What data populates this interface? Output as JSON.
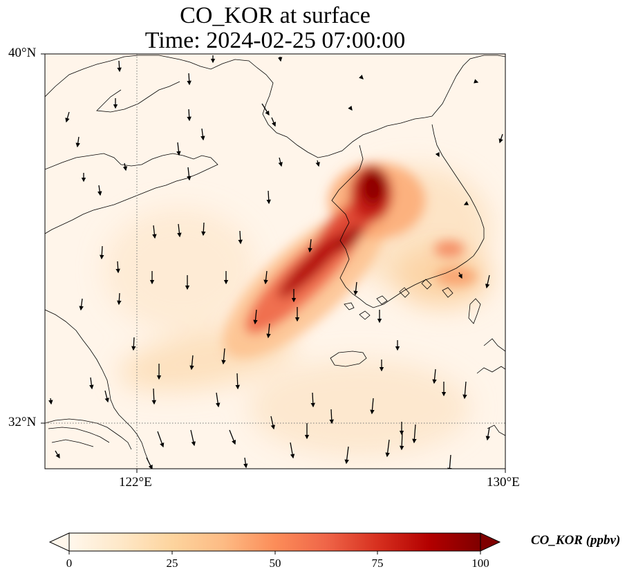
{
  "title": {
    "line1": "CO_KOR at surface",
    "line2": "Time: 2024-02-25 07:00:00"
  },
  "axes": {
    "y_labels": [
      "40°N",
      "32°N"
    ],
    "x_labels": [
      "122°E",
      "130°E"
    ],
    "lon_range": [
      120,
      130
    ],
    "lat_range": [
      31,
      40
    ],
    "gridlines": {
      "lon": [
        122
      ],
      "lat": [
        32
      ],
      "style": "dotted"
    }
  },
  "colorbar": {
    "label": "CO_KOR (ppbv)",
    "ticks": [
      "0",
      "25",
      "50",
      "75",
      "100"
    ],
    "range": [
      0,
      100
    ],
    "extend": "both",
    "colormap": "OrRd",
    "colors": [
      "#fff7ec",
      "#fee8c8",
      "#fdd49e",
      "#fdbb84",
      "#fc8d59",
      "#ef6548",
      "#d7301f",
      "#b30000",
      "#7f0000"
    ]
  },
  "map": {
    "projection": "PlateCarree",
    "coastline_color": "#000000",
    "wind_vector_color": "#000000"
  }
}
